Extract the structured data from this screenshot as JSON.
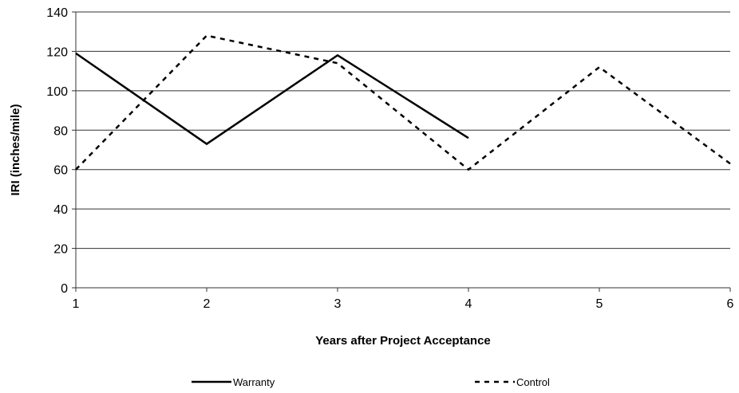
{
  "chart_data": {
    "type": "line",
    "x_label": "Years after Project Acceptance",
    "y_label": "IRI (inches/mile)",
    "x": [
      1,
      2,
      3,
      4,
      5,
      6
    ],
    "series": [
      {
        "name": "Warranty",
        "color": "#000000",
        "dash": "solid",
        "values": [
          119,
          73,
          118,
          76,
          null,
          null
        ]
      },
      {
        "name": "Control",
        "color": "#000000",
        "dash": "dashed",
        "values": [
          60,
          128,
          114,
          60,
          112,
          63
        ]
      }
    ],
    "xlim": [
      1,
      6
    ],
    "xticks": [
      1,
      2,
      3,
      4,
      5,
      6
    ],
    "ylim": [
      0,
      140
    ],
    "yticks": [
      0,
      20,
      40,
      60,
      80,
      100,
      120,
      140
    ],
    "grid": true,
    "legend": "bottom"
  }
}
